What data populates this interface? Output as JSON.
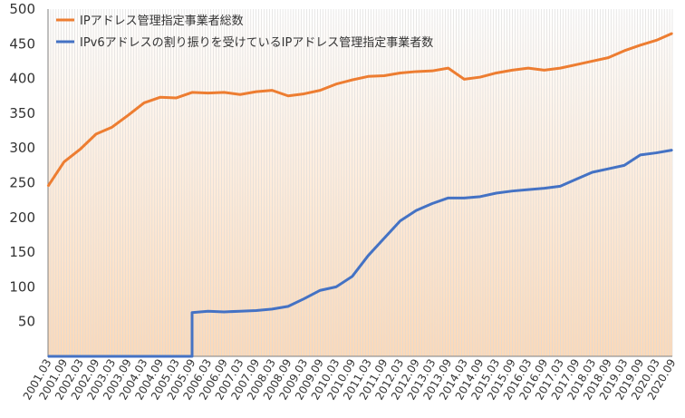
{
  "chart_data": {
    "type": "line",
    "title": "",
    "xlabel": "",
    "ylabel": "",
    "ylim": [
      0,
      500
    ],
    "y_ticks": [
      50,
      100,
      150,
      200,
      250,
      300,
      350,
      400,
      450,
      500
    ],
    "x_ticks": [
      "2001.03",
      "2001.09",
      "2002.03",
      "2002.09",
      "2003.03",
      "2003.09",
      "2004.03",
      "2004.09",
      "2005.03",
      "2005.09",
      "2006.03",
      "2006.09",
      "2007.03",
      "2007.09",
      "2008.03",
      "2008.09",
      "2009.03",
      "2009.09",
      "2010.03",
      "2010.09",
      "2011.03",
      "2011.09",
      "2012.03",
      "2012.09",
      "2013.03",
      "2013.09",
      "2014.03",
      "2014.09",
      "2015.03",
      "2015.09",
      "2016.03",
      "2016.09",
      "2017.03",
      "2017.09",
      "2018.03",
      "2018.09",
      "2019.03",
      "2019.09",
      "2020.03",
      "2020.09"
    ],
    "grid": "vertical",
    "background": "gradient white to light orange",
    "legend_position": "top-left",
    "series": [
      {
        "name": "IPアドレス管理指定事業者総数",
        "color": "#ED7D31",
        "x": [
          "2001.03",
          "2001.09",
          "2002.03",
          "2002.09",
          "2003.03",
          "2003.09",
          "2004.03",
          "2004.09",
          "2005.03",
          "2005.09",
          "2006.03",
          "2006.09",
          "2007.03",
          "2007.09",
          "2008.03",
          "2008.09",
          "2009.03",
          "2009.09",
          "2010.03",
          "2010.09",
          "2011.03",
          "2011.09",
          "2012.03",
          "2012.09",
          "2013.03",
          "2013.09",
          "2014.03",
          "2014.09",
          "2015.03",
          "2015.09",
          "2016.03",
          "2016.09",
          "2017.03",
          "2017.09",
          "2018.03",
          "2018.09",
          "2019.03",
          "2019.09",
          "2020.03",
          "2020.09"
        ],
        "values": [
          245,
          280,
          298,
          320,
          330,
          347,
          365,
          373,
          372,
          380,
          379,
          380,
          377,
          381,
          383,
          375,
          378,
          383,
          392,
          398,
          403,
          404,
          408,
          410,
          411,
          415,
          399,
          402,
          408,
          412,
          415,
          412,
          415,
          420,
          425,
          430,
          440,
          448,
          455,
          465
        ]
      },
      {
        "name": "IPv6アドレスの割り振りを受けているIPアドレス管理指定事業者数",
        "color": "#4472C4",
        "x": [
          "2001.03",
          "2001.09",
          "2002.03",
          "2002.09",
          "2003.03",
          "2003.09",
          "2004.03",
          "2004.09",
          "2005.03",
          "2005.09",
          "2006.03",
          "2006.09",
          "2007.03",
          "2007.09",
          "2008.03",
          "2008.09",
          "2009.03",
          "2009.09",
          "2010.03",
          "2010.09",
          "2011.03",
          "2011.09",
          "2012.03",
          "2012.09",
          "2013.03",
          "2013.09",
          "2014.03",
          "2014.09",
          "2015.03",
          "2015.09",
          "2016.03",
          "2016.09",
          "2017.03",
          "2017.09",
          "2018.03",
          "2018.09",
          "2019.03",
          "2019.09",
          "2020.03",
          "2020.09"
        ],
        "values": [
          0,
          0,
          0,
          0,
          0,
          0,
          0,
          0,
          0,
          63,
          65,
          64,
          65,
          66,
          68,
          72,
          83,
          95,
          100,
          115,
          145,
          170,
          195,
          210,
          220,
          228,
          228,
          230,
          235,
          238,
          240,
          242,
          245,
          255,
          265,
          270,
          275,
          290,
          293,
          297
        ]
      }
    ]
  }
}
